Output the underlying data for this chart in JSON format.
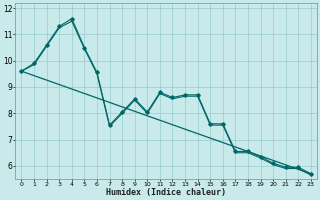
{
  "xlabel": "Humidex (Indice chaleur)",
  "background_color": "#c8eaea",
  "grid_color": "#99cccc",
  "line_color": "#006666",
  "xlim": [
    -0.5,
    23.5
  ],
  "ylim": [
    5.5,
    12.2
  ],
  "yticks": [
    6,
    7,
    8,
    9,
    10,
    11,
    12
  ],
  "xticks": [
    0,
    1,
    2,
    3,
    4,
    5,
    6,
    7,
    8,
    9,
    10,
    11,
    12,
    13,
    14,
    15,
    16,
    17,
    18,
    19,
    20,
    21,
    22,
    23
  ],
  "series1_x": [
    0,
    1,
    2,
    3,
    4,
    5,
    6,
    7,
    8,
    9,
    10,
    11,
    12,
    13,
    14,
    15,
    16,
    17,
    18,
    19,
    20,
    21,
    22,
    23
  ],
  "series1_y": [
    9.6,
    9.9,
    10.6,
    11.3,
    11.6,
    10.5,
    9.55,
    7.55,
    8.05,
    8.55,
    8.05,
    8.8,
    8.6,
    8.7,
    8.7,
    7.6,
    7.6,
    6.55,
    6.55,
    6.35,
    6.1,
    5.95,
    5.95,
    5.7
  ],
  "series2_x": [
    0,
    1,
    2,
    3,
    4,
    5,
    6,
    7,
    8,
    9,
    10,
    11,
    12,
    13,
    14,
    15,
    16,
    17,
    18,
    19,
    20,
    21,
    22,
    23
  ],
  "series2_y": [
    9.6,
    9.85,
    10.55,
    11.25,
    11.5,
    10.45,
    9.5,
    7.5,
    8.0,
    8.5,
    8.0,
    8.75,
    8.55,
    8.65,
    8.65,
    7.55,
    7.55,
    6.5,
    6.5,
    6.3,
    6.05,
    5.9,
    5.9,
    5.65
  ],
  "trend_x": [
    0,
    23
  ],
  "trend_y": [
    9.6,
    5.7
  ]
}
